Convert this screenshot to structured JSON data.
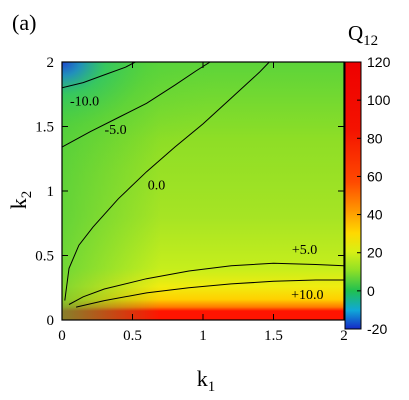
{
  "panel_label": "(a)",
  "colorbar": {
    "title_main": "Q",
    "title_sub": "12",
    "range": [
      -20,
      120
    ],
    "ticks": [
      "120",
      "100",
      "80",
      "60",
      "40",
      "20",
      "0",
      "-20"
    ],
    "tick_values": [
      120,
      100,
      80,
      60,
      40,
      20,
      0,
      -20
    ],
    "colormap": [
      "#1a3cc8",
      "#12b4d0",
      "#22c040",
      "#88e028",
      "#c8f01a",
      "#ffe000",
      "#ff8a00",
      "#ff2a00",
      "#f00000"
    ]
  },
  "chart_data": {
    "type": "heatmap",
    "title": "",
    "xlabel_main": "k",
    "xlabel_sub": "1",
    "ylabel_main": "k",
    "ylabel_sub": "2",
    "xlim": [
      0,
      2
    ],
    "ylim": [
      0,
      2
    ],
    "xticks": [
      "0",
      "0.5",
      "1",
      "1.5",
      "2"
    ],
    "xtick_values": [
      0,
      0.5,
      1,
      1.5,
      2
    ],
    "yticks": [
      "0",
      "0.5",
      "1",
      "1.5",
      "2"
    ],
    "ytick_values": [
      0,
      0.5,
      1,
      1.5,
      2
    ],
    "grid": false,
    "contours": [
      {
        "label": "-10.0",
        "level": -10,
        "points": [
          [
            0,
            1.8
          ],
          [
            0.15,
            1.84
          ],
          [
            0.3,
            1.9
          ],
          [
            0.45,
            1.96
          ],
          [
            0.52,
            2.0
          ]
        ],
        "label_at": [
          0.16,
          1.7
        ]
      },
      {
        "label": "-5.0",
        "level": -5,
        "points": [
          [
            0,
            1.34
          ],
          [
            0.2,
            1.46
          ],
          [
            0.4,
            1.57
          ],
          [
            0.6,
            1.68
          ],
          [
            0.8,
            1.82
          ],
          [
            0.95,
            1.93
          ],
          [
            1.05,
            2.0
          ]
        ],
        "label_at": [
          0.38,
          1.48
        ]
      },
      {
        "label": "0.0",
        "level": 0,
        "points": [
          [
            0.02,
            0.15
          ],
          [
            0.05,
            0.4
          ],
          [
            0.12,
            0.58
          ],
          [
            0.22,
            0.72
          ],
          [
            0.4,
            0.94
          ],
          [
            0.6,
            1.15
          ],
          [
            0.8,
            1.34
          ],
          [
            1.0,
            1.52
          ],
          [
            1.2,
            1.72
          ],
          [
            1.4,
            1.92
          ],
          [
            1.47,
            2.0
          ]
        ],
        "label_at": [
          0.67,
          1.05
        ]
      },
      {
        "label": "+5.0",
        "level": 5,
        "points": [
          [
            0.05,
            0.12
          ],
          [
            0.15,
            0.18
          ],
          [
            0.3,
            0.24
          ],
          [
            0.6,
            0.32
          ],
          [
            0.9,
            0.38
          ],
          [
            1.2,
            0.42
          ],
          [
            1.5,
            0.44
          ],
          [
            1.8,
            0.43
          ],
          [
            2.0,
            0.42
          ]
        ],
        "label_at": [
          1.72,
          0.55
        ]
      },
      {
        "label": "+10.0",
        "level": 10,
        "points": [
          [
            0.1,
            0.1
          ],
          [
            0.3,
            0.15
          ],
          [
            0.6,
            0.21
          ],
          [
            0.9,
            0.25
          ],
          [
            1.2,
            0.28
          ],
          [
            1.5,
            0.3
          ],
          [
            1.8,
            0.31
          ],
          [
            2.0,
            0.31
          ]
        ],
        "label_at": [
          1.74,
          0.2
        ]
      }
    ]
  }
}
